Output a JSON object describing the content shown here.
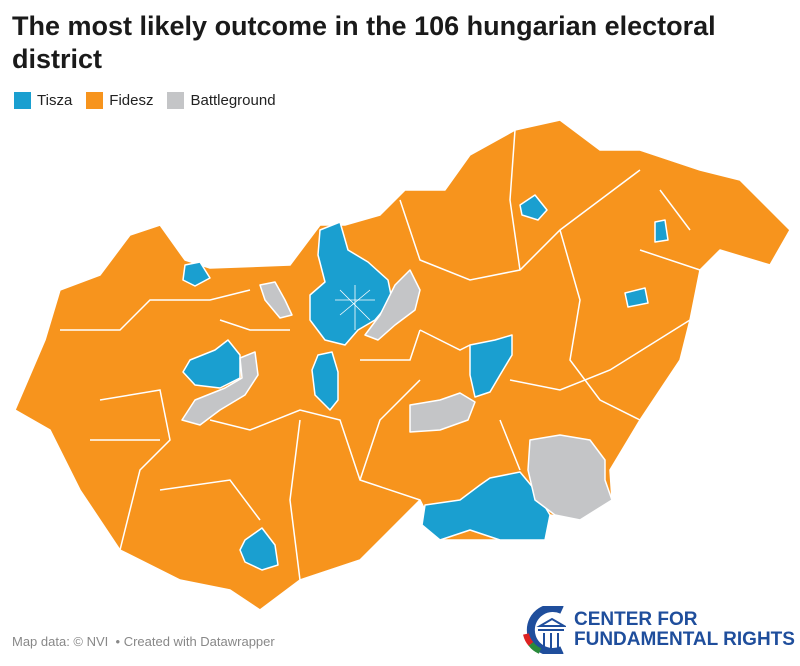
{
  "title": "The most likely outcome in the 106 hungarian electoral district",
  "legend": [
    {
      "label": "Tisza",
      "color": "#1a9fd0"
    },
    {
      "label": "Fidesz",
      "color": "#f7941d"
    },
    {
      "label": "Battleground",
      "color": "#c4c5c7"
    }
  ],
  "footer": {
    "source": "Map data: © NVI",
    "credit": "• Created with Datawrapper"
  },
  "logo": {
    "line1": "CENTER FOR",
    "line2": "FUNDAMENTAL RIGHTS"
  }
}
